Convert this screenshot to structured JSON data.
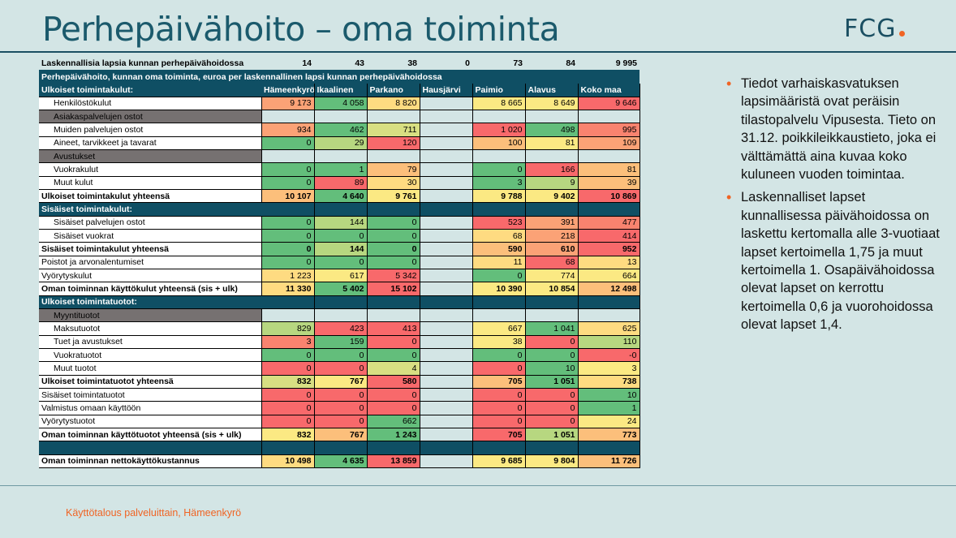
{
  "title": "Perhepäivähoito – oma toiminta",
  "logo": "FCG",
  "colors": {
    "g": "#63be7b",
    "lg": "#b7d780",
    "ylg": "#d8df82",
    "y": "#fbe983",
    "ly": "#fedb81",
    "lo": "#fcbf7b",
    "o": "#fba276",
    "ro": "#f9836f",
    "r": "#f8696b",
    "accent": "#f06424",
    "teal": "#0f4f64"
  },
  "table": {
    "top_row": {
      "label": "Laskennallisia lapsia kunnan perhepäivähoidossa",
      "values": [
        "14",
        "43",
        "38",
        "0",
        "73",
        "84",
        "9 995"
      ]
    },
    "header_title": "Perhepäivähoito, kunnan oma toiminta, euroa per laskennallinen lapsi kunnan perhepäivähoidossa",
    "header_label": "Ulkoiset toimintakulut:",
    "columns": [
      "Hämeenkyrö",
      "Ikaalinen",
      "Parkano",
      "Hausjärvi",
      "Paimio",
      "Alavus",
      "Koko maa"
    ],
    "rows": [
      {
        "label": "Henkilöstökulut",
        "type": "indent",
        "values": [
          "9 173",
          "4 058",
          "8 820",
          "",
          "8 665",
          "8 649",
          "9 646"
        ],
        "colors": [
          "o",
          "g",
          "ly",
          "",
          "y",
          "y",
          "r"
        ]
      },
      {
        "label": "Asiakaspalvelujen ostot",
        "type": "sub"
      },
      {
        "label": "Muiden palvelujen ostot",
        "type": "indent",
        "values": [
          "934",
          "462",
          "711",
          "",
          "1 020",
          "498",
          "995"
        ],
        "colors": [
          "o",
          "g",
          "ylg",
          "",
          "r",
          "g",
          "ro"
        ]
      },
      {
        "label": "Aineet, tarvikkeet ja tavarat",
        "type": "indent",
        "values": [
          "0",
          "29",
          "120",
          "",
          "100",
          "81",
          "109"
        ],
        "colors": [
          "g",
          "lg",
          "r",
          "",
          "lo",
          "y",
          "o"
        ]
      },
      {
        "label": "Avustukset",
        "type": "sub"
      },
      {
        "label": "Vuokrakulut",
        "type": "indent",
        "values": [
          "0",
          "1",
          "79",
          "",
          "0",
          "166",
          "81"
        ],
        "colors": [
          "g",
          "g",
          "lo",
          "",
          "g",
          "r",
          "lo"
        ]
      },
      {
        "label": "Muut kulut",
        "type": "indent",
        "values": [
          "0",
          "89",
          "30",
          "",
          "3",
          "9",
          "39"
        ],
        "colors": [
          "g",
          "r",
          "ly",
          "",
          "g",
          "lg",
          "lo"
        ]
      },
      {
        "label": "Ulkoiset toimintakulut yhteensä",
        "type": "bold",
        "values": [
          "10 107",
          "4 640",
          "9 761",
          "",
          "9 788",
          "9 402",
          "10 869"
        ],
        "colors": [
          "lo",
          "g",
          "y",
          "",
          "y",
          "y",
          "r"
        ]
      },
      {
        "label": "Sisäiset toimintakulut:",
        "type": "hdr"
      },
      {
        "label": "Sisäiset palvelujen ostot",
        "type": "indent",
        "values": [
          "0",
          "144",
          "0",
          "",
          "523",
          "391",
          "477"
        ],
        "colors": [
          "g",
          "lg",
          "g",
          "",
          "r",
          "o",
          "ro"
        ]
      },
      {
        "label": "Sisäiset vuokrat",
        "type": "indent",
        "values": [
          "0",
          "0",
          "0",
          "",
          "68",
          "218",
          "414"
        ],
        "colors": [
          "g",
          "g",
          "g",
          "",
          "ly",
          "o",
          "r"
        ]
      },
      {
        "label": "Sisäiset toimintakulut yhteensä",
        "type": "bold",
        "values": [
          "0",
          "144",
          "0",
          "",
          "590",
          "610",
          "952"
        ],
        "colors": [
          "g",
          "lg",
          "g",
          "",
          "lo",
          "o",
          "r"
        ]
      },
      {
        "label": "Poistot ja arvonalentumiset",
        "type": "plain",
        "values": [
          "0",
          "0",
          "0",
          "",
          "11",
          "68",
          "13"
        ],
        "colors": [
          "g",
          "g",
          "g",
          "",
          "ly",
          "r",
          "ly"
        ]
      },
      {
        "label": "Vyörytyskulut",
        "type": "plain",
        "values": [
          "1 223",
          "617",
          "5 342",
          "",
          "0",
          "774",
          "664"
        ],
        "colors": [
          "ly",
          "y",
          "r",
          "",
          "g",
          "y",
          "y"
        ]
      },
      {
        "label": "Oman toiminnan käyttökulut yhteensä (sis + ulk)",
        "type": "bold",
        "values": [
          "11 330",
          "5 402",
          "15 102",
          "",
          "10 390",
          "10 854",
          "12 498"
        ],
        "colors": [
          "ly",
          "g",
          "r",
          "",
          "y",
          "y",
          "lo"
        ]
      },
      {
        "label": "Ulkoiset toimintatuotot:",
        "type": "hdr"
      },
      {
        "label": "Myyntituotot",
        "type": "sub"
      },
      {
        "label": "Maksutuotot",
        "type": "indent",
        "values": [
          "829",
          "423",
          "413",
          "",
          "667",
          "1 041",
          "625"
        ],
        "colors": [
          "lg",
          "r",
          "r",
          "",
          "y",
          "g",
          "ly"
        ]
      },
      {
        "label": "Tuet ja avustukset",
        "type": "indent",
        "values": [
          "3",
          "159",
          "0",
          "",
          "38",
          "0",
          "110"
        ],
        "colors": [
          "ro",
          "g",
          "r",
          "",
          "y",
          "r",
          "lg"
        ]
      },
      {
        "label": "Vuokratuotot",
        "type": "indent",
        "values": [
          "0",
          "0",
          "0",
          "",
          "0",
          "0",
          "-0"
        ],
        "colors": [
          "g",
          "g",
          "g",
          "",
          "g",
          "g",
          "r"
        ]
      },
      {
        "label": "Muut tuotot",
        "type": "indent",
        "values": [
          "0",
          "0",
          "4",
          "",
          "0",
          "10",
          "3"
        ],
        "colors": [
          "r",
          "r",
          "ylg",
          "",
          "r",
          "g",
          "y"
        ]
      },
      {
        "label": "Ulkoiset toimintatuotot yhteensä",
        "type": "bold",
        "values": [
          "832",
          "767",
          "580",
          "",
          "705",
          "1 051",
          "738"
        ],
        "colors": [
          "ylg",
          "y",
          "r",
          "",
          "lo",
          "g",
          "ly"
        ]
      },
      {
        "label": "Sisäiset toimintatuotot",
        "type": "plain",
        "values": [
          "0",
          "0",
          "0",
          "",
          "0",
          "0",
          "10"
        ],
        "colors": [
          "r",
          "r",
          "r",
          "",
          "r",
          "r",
          "g"
        ]
      },
      {
        "label": "Valmistus omaan käyttöön",
        "type": "plain",
        "values": [
          "0",
          "0",
          "0",
          "",
          "0",
          "0",
          "1"
        ],
        "colors": [
          "r",
          "r",
          "r",
          "",
          "r",
          "r",
          "g"
        ]
      },
      {
        "label": "Vyörytystuotot",
        "type": "plain",
        "values": [
          "0",
          "0",
          "662",
          "",
          "0",
          "0",
          "24"
        ],
        "colors": [
          "r",
          "r",
          "g",
          "",
          "r",
          "r",
          "y"
        ]
      },
      {
        "label": "Oman toiminnan käyttötuotot yhteensä (sis + ulk)",
        "type": "bold",
        "values": [
          "832",
          "767",
          "1 243",
          "",
          "705",
          "1 051",
          "773"
        ],
        "colors": [
          "y",
          "lo",
          "g",
          "",
          "r",
          "lg",
          "lo"
        ]
      },
      {
        "label": "",
        "type": "dark"
      },
      {
        "label": "Oman toiminnan nettokäyttökustannus",
        "type": "bold",
        "values": [
          "10 498",
          "4 635",
          "13 859",
          "",
          "9 685",
          "9 804",
          "11 726"
        ],
        "colors": [
          "ly",
          "g",
          "r",
          "",
          "y",
          "y",
          "lo"
        ]
      }
    ]
  },
  "notes": [
    "Tiedot varhaiskasvatuksen lapsimääristä ovat peräisin tilastopalvelu Vipusesta. Tieto on 31.12. poikkileikkaustieto, joka ei välttämättä aina kuvaa koko kuluneen vuoden toimintaa.",
    "Laskennalliset lapset kunnallisessa päivähoidossa on laskettu kertomalla alle 3-vuotiaat lapset kertoimella 1,75 ja muut kertoimella 1. Osapäivähoidossa olevat lapset on kerrottu kertoimella 0,6 ja vuorohoidossa olevat lapset 1,4."
  ],
  "footer": "Käyttötalous palveluittain, Hämeenkyrö"
}
